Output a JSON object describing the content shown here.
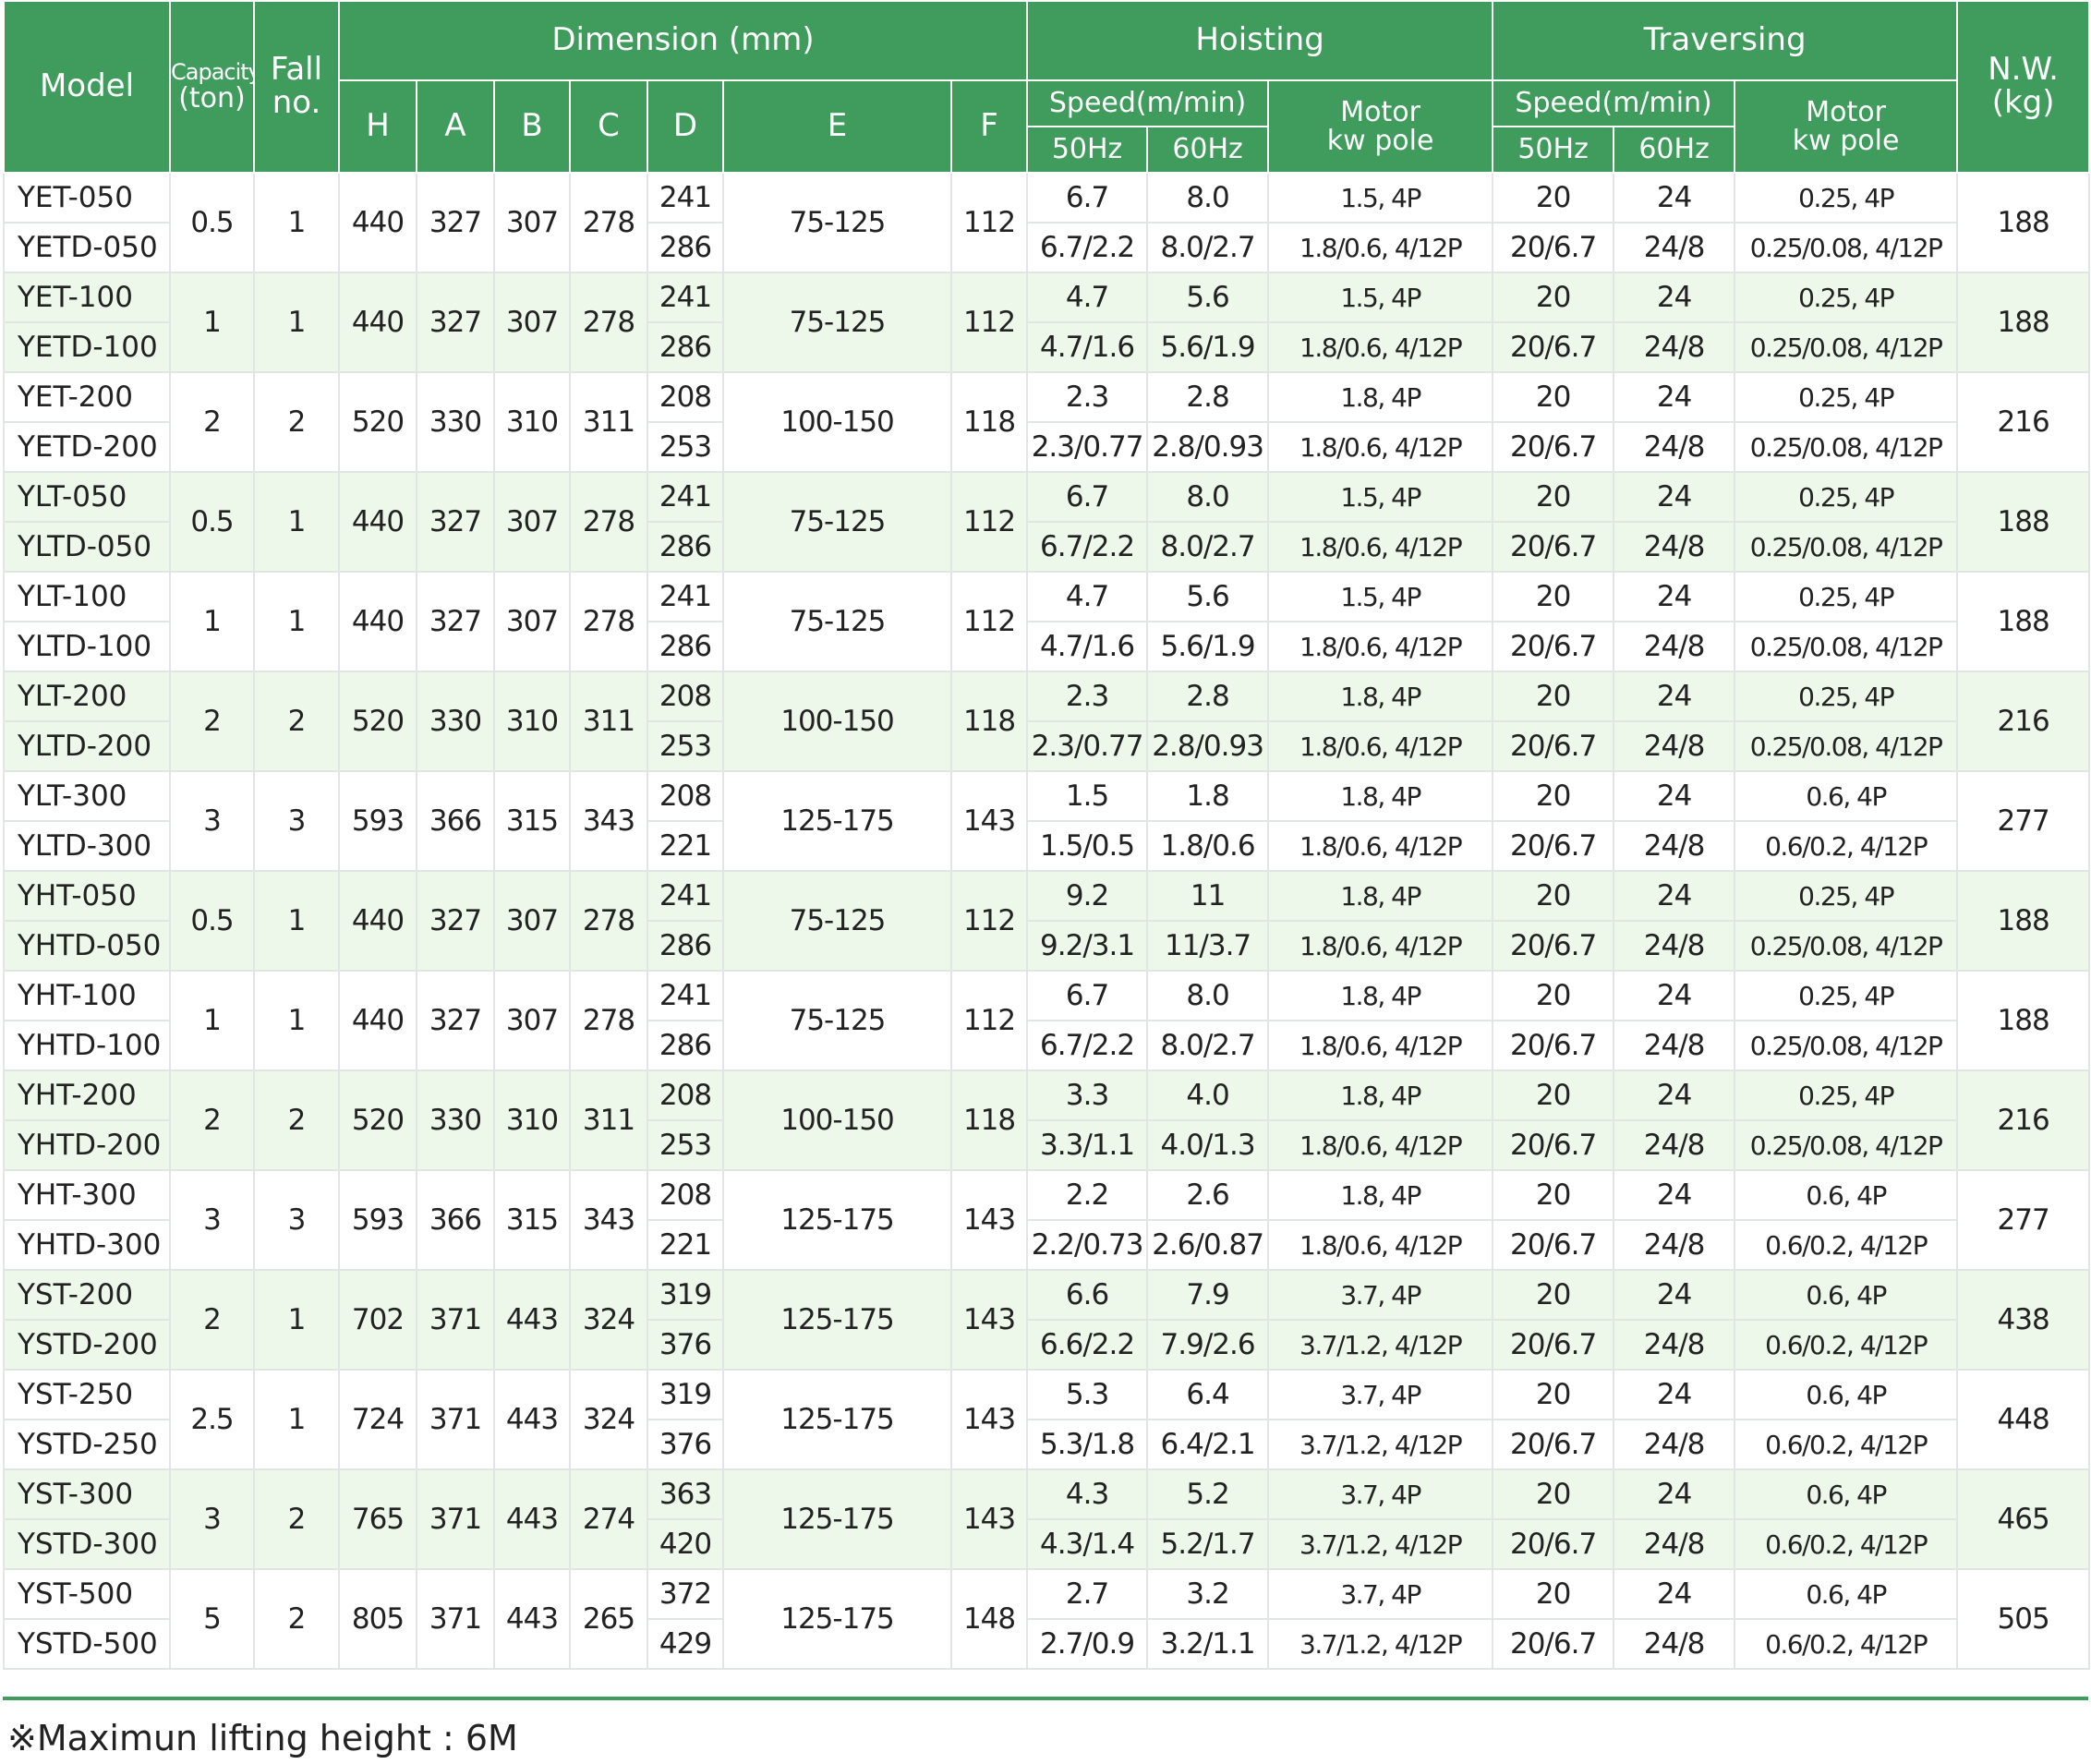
{
  "header": {
    "model": "Model",
    "capacity": [
      "Capacity",
      "(ton)"
    ],
    "fall": [
      "Fall",
      "no."
    ],
    "dimension": "Dimension (mm)",
    "dims": [
      "H",
      "A",
      "B",
      "C",
      "D",
      "E",
      "F"
    ],
    "hoisting": "Hoisting",
    "traversing": "Traversing",
    "speed": "Speed(m/min)",
    "hz": [
      "50Hz",
      "60Hz"
    ],
    "motor": [
      "Motor",
      "kw pole"
    ],
    "nw": [
      "N.W.",
      "(kg)"
    ]
  },
  "table": {
    "groups": [
      {
        "model": [
          "YET-050",
          "YETD-050"
        ],
        "capacity": "0.5",
        "fall": "1",
        "h": "440",
        "a": "327",
        "b": "307",
        "c": "278",
        "d": [
          "241",
          "286"
        ],
        "e": "75-125",
        "f": "112",
        "hoist_50hz": [
          "6.7",
          "6.7/2.2"
        ],
        "hoist_60hz": [
          "8.0",
          "8.0/2.7"
        ],
        "hoist_motor": [
          "1.5, 4P",
          "1.8/0.6, 4/12P"
        ],
        "trav_50hz": [
          "20",
          "20/6.7"
        ],
        "trav_60hz": [
          "24",
          "24/8"
        ],
        "trav_motor": [
          "0.25, 4P",
          "0.25/0.08, 4/12P"
        ],
        "nw": "188"
      },
      {
        "model": [
          "YET-100",
          "YETD-100"
        ],
        "capacity": "1",
        "fall": "1",
        "h": "440",
        "a": "327",
        "b": "307",
        "c": "278",
        "d": [
          "241",
          "286"
        ],
        "e": "75-125",
        "f": "112",
        "hoist_50hz": [
          "4.7",
          "4.7/1.6"
        ],
        "hoist_60hz": [
          "5.6",
          "5.6/1.9"
        ],
        "hoist_motor": [
          "1.5, 4P",
          "1.8/0.6, 4/12P"
        ],
        "trav_50hz": [
          "20",
          "20/6.7"
        ],
        "trav_60hz": [
          "24",
          "24/8"
        ],
        "trav_motor": [
          "0.25, 4P",
          "0.25/0.08, 4/12P"
        ],
        "nw": "188"
      },
      {
        "model": [
          "YET-200",
          "YETD-200"
        ],
        "capacity": "2",
        "fall": "2",
        "h": "520",
        "a": "330",
        "b": "310",
        "c": "311",
        "d": [
          "208",
          "253"
        ],
        "e": "100-150",
        "f": "118",
        "hoist_50hz": [
          "2.3",
          "2.3/0.77"
        ],
        "hoist_60hz": [
          "2.8",
          "2.8/0.93"
        ],
        "hoist_motor": [
          "1.8, 4P",
          "1.8/0.6, 4/12P"
        ],
        "trav_50hz": [
          "20",
          "20/6.7"
        ],
        "trav_60hz": [
          "24",
          "24/8"
        ],
        "trav_motor": [
          "0.25, 4P",
          "0.25/0.08, 4/12P"
        ],
        "nw": "216"
      },
      {
        "model": [
          "YLT-050",
          "YLTD-050"
        ],
        "capacity": "0.5",
        "fall": "1",
        "h": "440",
        "a": "327",
        "b": "307",
        "c": "278",
        "d": [
          "241",
          "286"
        ],
        "e": "75-125",
        "f": "112",
        "hoist_50hz": [
          "6.7",
          "6.7/2.2"
        ],
        "hoist_60hz": [
          "8.0",
          "8.0/2.7"
        ],
        "hoist_motor": [
          "1.5, 4P",
          "1.8/0.6, 4/12P"
        ],
        "trav_50hz": [
          "20",
          "20/6.7"
        ],
        "trav_60hz": [
          "24",
          "24/8"
        ],
        "trav_motor": [
          "0.25, 4P",
          "0.25/0.08, 4/12P"
        ],
        "nw": "188"
      },
      {
        "model": [
          "YLT-100",
          "YLTD-100"
        ],
        "capacity": "1",
        "fall": "1",
        "h": "440",
        "a": "327",
        "b": "307",
        "c": "278",
        "d": [
          "241",
          "286"
        ],
        "e": "75-125",
        "f": "112",
        "hoist_50hz": [
          "4.7",
          "4.7/1.6"
        ],
        "hoist_60hz": [
          "5.6",
          "5.6/1.9"
        ],
        "hoist_motor": [
          "1.5, 4P",
          "1.8/0.6, 4/12P"
        ],
        "trav_50hz": [
          "20",
          "20/6.7"
        ],
        "trav_60hz": [
          "24",
          "24/8"
        ],
        "trav_motor": [
          "0.25, 4P",
          "0.25/0.08, 4/12P"
        ],
        "nw": "188"
      },
      {
        "model": [
          "YLT-200",
          "YLTD-200"
        ],
        "capacity": "2",
        "fall": "2",
        "h": "520",
        "a": "330",
        "b": "310",
        "c": "311",
        "d": [
          "208",
          "253"
        ],
        "e": "100-150",
        "f": "118",
        "hoist_50hz": [
          "2.3",
          "2.3/0.77"
        ],
        "hoist_60hz": [
          "2.8",
          "2.8/0.93"
        ],
        "hoist_motor": [
          "1.8, 4P",
          "1.8/0.6, 4/12P"
        ],
        "trav_50hz": [
          "20",
          "20/6.7"
        ],
        "trav_60hz": [
          "24",
          "24/8"
        ],
        "trav_motor": [
          "0.25, 4P",
          "0.25/0.08, 4/12P"
        ],
        "nw": "216"
      },
      {
        "model": [
          "YLT-300",
          "YLTD-300"
        ],
        "capacity": "3",
        "fall": "3",
        "h": "593",
        "a": "366",
        "b": "315",
        "c": "343",
        "d": [
          "208",
          "221"
        ],
        "e": "125-175",
        "f": "143",
        "hoist_50hz": [
          "1.5",
          "1.5/0.5"
        ],
        "hoist_60hz": [
          "1.8",
          "1.8/0.6"
        ],
        "hoist_motor": [
          "1.8, 4P",
          "1.8/0.6, 4/12P"
        ],
        "trav_50hz": [
          "20",
          "20/6.7"
        ],
        "trav_60hz": [
          "24",
          "24/8"
        ],
        "trav_motor": [
          "0.6, 4P",
          "0.6/0.2, 4/12P"
        ],
        "nw": "277"
      },
      {
        "model": [
          "YHT-050",
          "YHTD-050"
        ],
        "capacity": "0.5",
        "fall": "1",
        "h": "440",
        "a": "327",
        "b": "307",
        "c": "278",
        "d": [
          "241",
          "286"
        ],
        "e": "75-125",
        "f": "112",
        "hoist_50hz": [
          "9.2",
          "9.2/3.1"
        ],
        "hoist_60hz": [
          "11",
          "11/3.7"
        ],
        "hoist_motor": [
          "1.8, 4P",
          "1.8/0.6, 4/12P"
        ],
        "trav_50hz": [
          "20",
          "20/6.7"
        ],
        "trav_60hz": [
          "24",
          "24/8"
        ],
        "trav_motor": [
          "0.25, 4P",
          "0.25/0.08, 4/12P"
        ],
        "nw": "188"
      },
      {
        "model": [
          "YHT-100",
          "YHTD-100"
        ],
        "capacity": "1",
        "fall": "1",
        "h": "440",
        "a": "327",
        "b": "307",
        "c": "278",
        "d": [
          "241",
          "286"
        ],
        "e": "75-125",
        "f": "112",
        "hoist_50hz": [
          "6.7",
          "6.7/2.2"
        ],
        "hoist_60hz": [
          "8.0",
          "8.0/2.7"
        ],
        "hoist_motor": [
          "1.8, 4P",
          "1.8/0.6, 4/12P"
        ],
        "trav_50hz": [
          "20",
          "20/6.7"
        ],
        "trav_60hz": [
          "24",
          "24/8"
        ],
        "trav_motor": [
          "0.25, 4P",
          "0.25/0.08, 4/12P"
        ],
        "nw": "188"
      },
      {
        "model": [
          "YHT-200",
          "YHTD-200"
        ],
        "capacity": "2",
        "fall": "2",
        "h": "520",
        "a": "330",
        "b": "310",
        "c": "311",
        "d": [
          "208",
          "253"
        ],
        "e": "100-150",
        "f": "118",
        "hoist_50hz": [
          "3.3",
          "3.3/1.1"
        ],
        "hoist_60hz": [
          "4.0",
          "4.0/1.3"
        ],
        "hoist_motor": [
          "1.8, 4P",
          "1.8/0.6, 4/12P"
        ],
        "trav_50hz": [
          "20",
          "20/6.7"
        ],
        "trav_60hz": [
          "24",
          "24/8"
        ],
        "trav_motor": [
          "0.25, 4P",
          "0.25/0.08, 4/12P"
        ],
        "nw": "216"
      },
      {
        "model": [
          "YHT-300",
          "YHTD-300"
        ],
        "capacity": "3",
        "fall": "3",
        "h": "593",
        "a": "366",
        "b": "315",
        "c": "343",
        "d": [
          "208",
          "221"
        ],
        "e": "125-175",
        "f": "143",
        "hoist_50hz": [
          "2.2",
          "2.2/0.73"
        ],
        "hoist_60hz": [
          "2.6",
          "2.6/0.87"
        ],
        "hoist_motor": [
          "1.8, 4P",
          "1.8/0.6, 4/12P"
        ],
        "trav_50hz": [
          "20",
          "20/6.7"
        ],
        "trav_60hz": [
          "24",
          "24/8"
        ],
        "trav_motor": [
          "0.6, 4P",
          "0.6/0.2, 4/12P"
        ],
        "nw": "277"
      },
      {
        "model": [
          "YST-200",
          "YSTD-200"
        ],
        "capacity": "2",
        "fall": "1",
        "h": "702",
        "a": "371",
        "b": "443",
        "c": "324",
        "d": [
          "319",
          "376"
        ],
        "e": "125-175",
        "f": "143",
        "hoist_50hz": [
          "6.6",
          "6.6/2.2"
        ],
        "hoist_60hz": [
          "7.9",
          "7.9/2.6"
        ],
        "hoist_motor": [
          "3.7, 4P",
          "3.7/1.2, 4/12P"
        ],
        "trav_50hz": [
          "20",
          "20/6.7"
        ],
        "trav_60hz": [
          "24",
          "24/8"
        ],
        "trav_motor": [
          "0.6, 4P",
          "0.6/0.2, 4/12P"
        ],
        "nw": "438"
      },
      {
        "model": [
          "YST-250",
          "YSTD-250"
        ],
        "capacity": "2.5",
        "fall": "1",
        "h": "724",
        "a": "371",
        "b": "443",
        "c": "324",
        "d": [
          "319",
          "376"
        ],
        "e": "125-175",
        "f": "143",
        "hoist_50hz": [
          "5.3",
          "5.3/1.8"
        ],
        "hoist_60hz": [
          "6.4",
          "6.4/2.1"
        ],
        "hoist_motor": [
          "3.7, 4P",
          "3.7/1.2, 4/12P"
        ],
        "trav_50hz": [
          "20",
          "20/6.7"
        ],
        "trav_60hz": [
          "24",
          "24/8"
        ],
        "trav_motor": [
          "0.6, 4P",
          "0.6/0.2, 4/12P"
        ],
        "nw": "448"
      },
      {
        "model": [
          "YST-300",
          "YSTD-300"
        ],
        "capacity": "3",
        "fall": "2",
        "h": "765",
        "a": "371",
        "b": "443",
        "c": "274",
        "d": [
          "363",
          "420"
        ],
        "e": "125-175",
        "f": "143",
        "hoist_50hz": [
          "4.3",
          "4.3/1.4"
        ],
        "hoist_60hz": [
          "5.2",
          "5.2/1.7"
        ],
        "hoist_motor": [
          "3.7, 4P",
          "3.7/1.2, 4/12P"
        ],
        "trav_50hz": [
          "20",
          "20/6.7"
        ],
        "trav_60hz": [
          "24",
          "24/8"
        ],
        "trav_motor": [
          "0.6, 4P",
          "0.6/0.2, 4/12P"
        ],
        "nw": "465"
      },
      {
        "model": [
          "YST-500",
          "YSTD-500"
        ],
        "capacity": "5",
        "fall": "2",
        "h": "805",
        "a": "371",
        "b": "443",
        "c": "265",
        "d": [
          "372",
          "429"
        ],
        "e": "125-175",
        "f": "148",
        "hoist_50hz": [
          "2.7",
          "2.7/0.9"
        ],
        "hoist_60hz": [
          "3.2",
          "3.2/1.1"
        ],
        "hoist_motor": [
          "3.7, 4P",
          "3.7/1.2, 4/12P"
        ],
        "trav_50hz": [
          "20",
          "20/6.7"
        ],
        "trav_60hz": [
          "24",
          "24/8"
        ],
        "trav_motor": [
          "0.6, 4P",
          "0.6/0.2, 4/12P"
        ],
        "nw": "505"
      }
    ]
  },
  "footnote": "※Maximun lifting height : 6M"
}
